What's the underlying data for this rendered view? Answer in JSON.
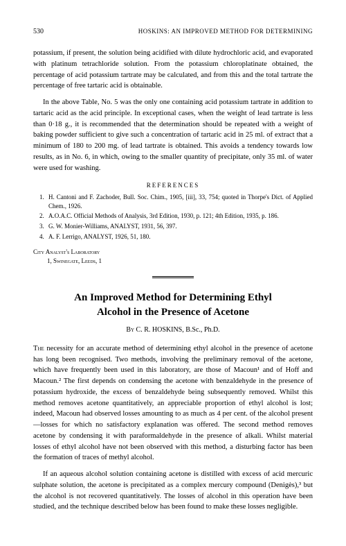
{
  "header": {
    "page_number": "530",
    "running_head": "HOSKINS: AN IMPROVED METHOD FOR DETERMINING"
  },
  "prev_article": {
    "para1": "potassium, if present, the solution being acidified with dilute hydrochloric acid, and evaporated with platinum tetrachloride solution. From the potassium chloroplatinate obtained, the percentage of acid potassium tartrate may be calculated, and from this and the total tartrate the percentage of free tartaric acid is obtainable.",
    "para2": "In the above Table, No. 5 was the only one containing acid potassium tartrate in addition to tartaric acid as the acid principle. In exceptional cases, when the weight of lead tartrate is less than 0·18 g., it is recommended that the determination should be repeated with a weight of baking powder sufficient to give such a concentration of tartaric acid in 25 ml. of extract that a minimum of 180 to 200 mg. of lead tartrate is obtained. This avoids a tendency towards low results, as in No. 6, in which, owing to the smaller quantity of precipitate, only 35 ml. of water were used for washing.",
    "refs_title": "REFERENCES",
    "refs": [
      "H. Cantoni and F. Zachoder, Bull. Soc. Chim., 1905, [iii], 33, 754; quoted in Thorpe's Dict. of Applied Chem., 1926.",
      "A.O.A.C. Official Methods of Analysis, 3rd Edition, 1930, p. 121; 4th Edition, 1935, p. 186.",
      "G. W. Monier-Williams, ANALYST, 1931, 56, 397.",
      "A. F. Lerrigo, ANALYST, 1926, 51, 180."
    ],
    "affiliation": {
      "line1": "City Analyst's Laboratory",
      "line2": "1, Swinegate, Leeds, 1"
    }
  },
  "article": {
    "title_line1": "An Improved Method for Determining Ethyl",
    "title_line2": "Alcohol in the Presence of Acetone",
    "byline_prefix": "By ",
    "byline": "C. R. HOSKINS, B.Sc., Ph.D.",
    "para1_first": "The",
    "para1_rest": " necessity for an accurate method of determining ethyl alcohol in the presence of acetone has long been recognised. Two methods, involving the preliminary removal of the acetone, which have frequently been used in this laboratory, are those of Macoun¹ and of Hoff and Macoun.² The first depends on condensing the acetone with benzaldehyde in the presence of potassium hydroxide, the excess of benzaldehyde being subsequently removed. Whilst this method removes acetone quantitatively, an appreciable proportion of ethyl alcohol is lost; indeed, Macoun had observed losses amounting to as much as 4 per cent. of the alcohol present—losses for which no satisfactory explanation was offered. The second method removes acetone by condensing it with paraformaldehyde in the presence of alkali. Whilst material losses of ethyl alcohol have not been observed with this method, a disturbing factor has been the formation of traces of methyl alcohol.",
    "para2": "If an aqueous alcohol solution containing acetone is distilled with excess of acid mercuric sulphate solution, the acetone is precipitated as a complex mercury compound (Denigès),³ but the alcohol is not recovered quantitatively. The losses of alcohol in this operation have been studied, and the technique described below has been found to make these losses negligible."
  }
}
